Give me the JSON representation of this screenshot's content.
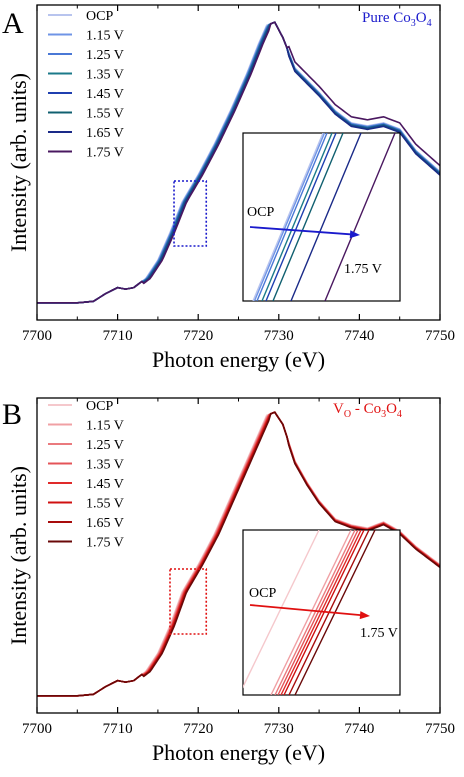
{
  "chart_data": [
    {
      "type": "line",
      "panel_letter": "A",
      "title_parts": {
        "pre": "Pure Co",
        "s1": "3",
        "mid": "O",
        "s2": "4"
      },
      "title_color": "#1a1acc",
      "xlabel": "Photon energy (eV)",
      "ylabel": "Intensity (arb. units)",
      "xlim": [
        7700,
        7750
      ],
      "xticks": [
        7700,
        7710,
        7720,
        7730,
        7740,
        7750
      ],
      "ylim": [
        0,
        1.0
      ],
      "series": [
        {
          "name": "OCP",
          "color": "#b8c4ee"
        },
        {
          "name": "1.15 V",
          "color": "#6f94e6"
        },
        {
          "name": "1.25 V",
          "color": "#4a78d6"
        },
        {
          "name": "1.35 V",
          "color": "#1b7a8a"
        },
        {
          "name": "1.45 V",
          "color": "#1f3fb0"
        },
        {
          "name": "1.55 V",
          "color": "#106070"
        },
        {
          "name": "1.65 V",
          "color": "#1a2a88"
        },
        {
          "name": "1.75 V",
          "color": "#4a1860"
        }
      ],
      "base_curve": {
        "x": [
          7700,
          7705,
          7707,
          7708.5,
          7710,
          7711,
          7712,
          7713.5,
          7715,
          7716.5,
          7718,
          7720,
          7722,
          7724,
          7726,
          7727.5,
          7728.5,
          7729.5,
          7730.5,
          7732,
          7733.5,
          7735,
          7737,
          7739,
          7741,
          7743,
          7745,
          7747,
          7750
        ],
        "y": [
          0.03,
          0.03,
          0.035,
          0.06,
          0.08,
          0.075,
          0.08,
          0.11,
          0.17,
          0.26,
          0.36,
          0.45,
          0.55,
          0.66,
          0.78,
          0.88,
          0.94,
          0.95,
          0.9,
          0.8,
          0.76,
          0.72,
          0.66,
          0.62,
          0.61,
          0.62,
          0.6,
          0.53,
          0.46
        ]
      },
      "inset": {
        "label_start": "OCP",
        "label_end": "1.75 V",
        "arrow_color": "#1a1acc",
        "box_color": "#1a1acc",
        "box_x": [
          7717,
          7721
        ]
      }
    },
    {
      "type": "line",
      "panel_letter": "B",
      "title_parts": {
        "pre": "V",
        "s1": "O",
        "mid": " - Co",
        "s2": "3",
        "post": "O",
        "s3": "4"
      },
      "title_color": "#e01010",
      "xlabel": "Photon energy (eV)",
      "ylabel": "Intensity (arb. units)",
      "xlim": [
        7700,
        7750
      ],
      "xticks": [
        7700,
        7710,
        7720,
        7730,
        7740,
        7750
      ],
      "ylim": [
        0,
        1.0
      ],
      "series": [
        {
          "name": "OCP",
          "color": "#f5c8cc"
        },
        {
          "name": "1.15 V",
          "color": "#f0a0a4"
        },
        {
          "name": "1.25 V",
          "color": "#ea7a7e"
        },
        {
          "name": "1.35 V",
          "color": "#e45458"
        },
        {
          "name": "1.45 V",
          "color": "#e02a2a"
        },
        {
          "name": "1.55 V",
          "color": "#d01010"
        },
        {
          "name": "1.65 V",
          "color": "#a80c0c"
        },
        {
          "name": "1.75 V",
          "color": "#6a0808"
        }
      ],
      "base_curve": {
        "x": [
          7700,
          7705,
          7707,
          7708.5,
          7710,
          7711,
          7712,
          7713.5,
          7715,
          7716.5,
          7718,
          7720,
          7722,
          7724,
          7726,
          7727.5,
          7728.5,
          7729.5,
          7730.5,
          7732,
          7733.5,
          7735,
          7737,
          7739,
          7741,
          7743,
          7745,
          7747,
          7750
        ],
        "y": [
          0.03,
          0.03,
          0.035,
          0.06,
          0.08,
          0.075,
          0.08,
          0.11,
          0.17,
          0.26,
          0.37,
          0.46,
          0.56,
          0.68,
          0.8,
          0.89,
          0.95,
          0.96,
          0.92,
          0.8,
          0.73,
          0.67,
          0.61,
          0.59,
          0.58,
          0.6,
          0.57,
          0.52,
          0.46
        ]
      },
      "inset": {
        "label_start": "OCP",
        "label_end": "1.75 V",
        "arrow_color": "#e01010",
        "box_color": "#e01010",
        "box_x": [
          7716.5,
          7721
        ]
      }
    }
  ]
}
